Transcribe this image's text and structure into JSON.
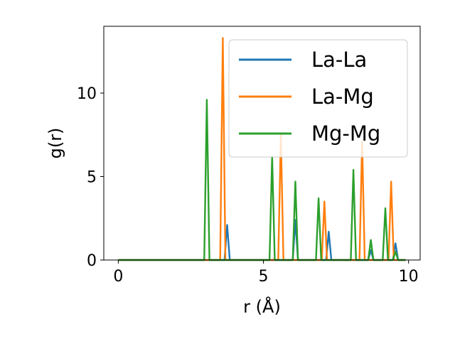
{
  "chart_data": {
    "type": "line",
    "xlabel": "r (Å)",
    "ylabel": "g(r)",
    "xlim": [
      -0.5,
      10.4
    ],
    "ylim": [
      0,
      14
    ],
    "xticks": [
      0,
      5,
      10
    ],
    "yticks": [
      0,
      5,
      10
    ],
    "grid": false,
    "legend_position": "top-right",
    "series": [
      {
        "name": "La-La",
        "color": "#1f77b4",
        "peaks": [
          [
            3.75,
            2.1
          ],
          [
            6.1,
            2.4
          ],
          [
            7.25,
            1.7
          ],
          [
            8.7,
            0.6
          ],
          [
            9.55,
            1.0
          ]
        ]
      },
      {
        "name": "La-Mg",
        "color": "#ff7f0e",
        "peaks": [
          [
            3.6,
            13.3
          ],
          [
            5.6,
            7.5
          ],
          [
            7.1,
            3.5
          ],
          [
            8.4,
            7.1
          ],
          [
            9.4,
            4.7
          ]
        ]
      },
      {
        "name": "Mg-Mg",
        "color": "#2ca02c",
        "peaks": [
          [
            3.05,
            9.6
          ],
          [
            5.3,
            6.2
          ],
          [
            6.1,
            4.7
          ],
          [
            6.9,
            3.7
          ],
          [
            8.1,
            5.4
          ],
          [
            8.7,
            1.2
          ],
          [
            9.2,
            3.1
          ],
          [
            9.55,
            0.5
          ]
        ]
      }
    ],
    "x_range": [
      0.0,
      9.9
    ]
  }
}
